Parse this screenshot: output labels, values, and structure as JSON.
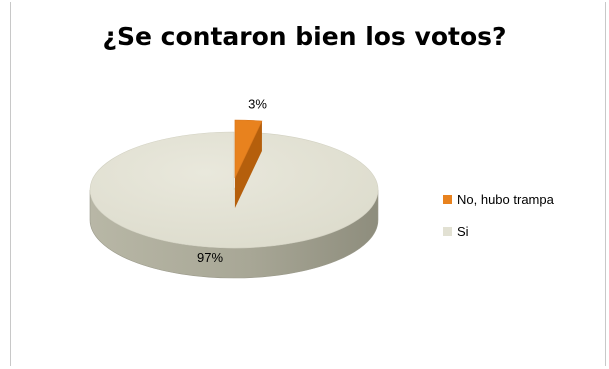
{
  "chart_data": {
    "type": "pie",
    "title": "¿Se contaron bien los votos?",
    "three_d": true,
    "legend_position": "right",
    "slices": [
      {
        "label": "No, hubo trampa",
        "value": 3,
        "data_label": "3%",
        "color": "#e8821e"
      },
      {
        "label": "Si",
        "value": 97,
        "data_label": "97%",
        "color": "#e2e1d3"
      }
    ]
  }
}
